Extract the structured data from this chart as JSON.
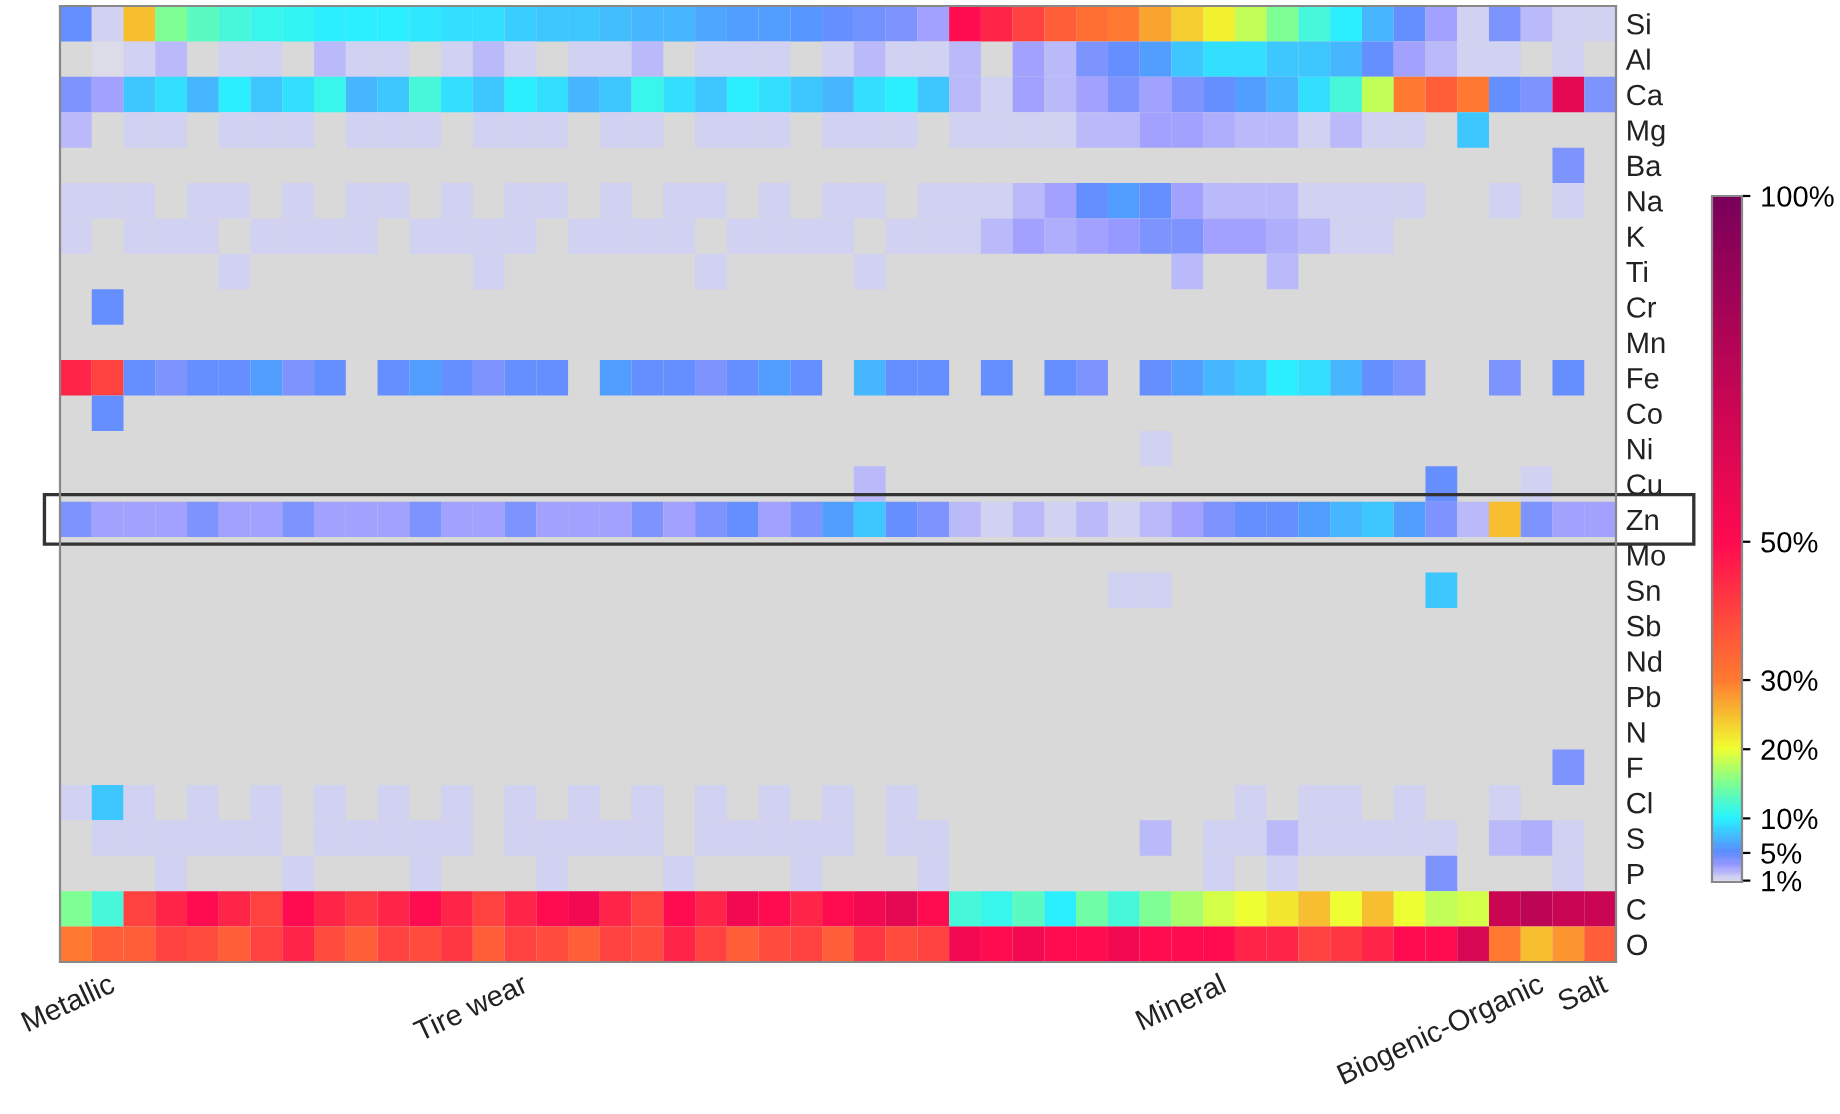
{
  "chart_data": {
    "type": "heatmap",
    "categories": [
      null,
      "Metallic",
      null,
      null,
      null,
      null,
      null,
      null,
      null,
      null,
      null,
      null,
      null,
      null,
      "Tire wear",
      null,
      null,
      null,
      null,
      null,
      null,
      null,
      null,
      null,
      null,
      null,
      null,
      null,
      null,
      null,
      null,
      null,
      null,
      null,
      null,
      null,
      "Mineral",
      null,
      null,
      null,
      null,
      null,
      null,
      null,
      null,
      null,
      "Biogenic-Organic",
      null,
      "Salt"
    ],
    "y_categories": [
      "Si",
      "Al",
      "Ca",
      "Mg",
      "Ba",
      "Na",
      "K",
      "Ti",
      "Cr",
      "Mn",
      "Fe",
      "Co",
      "Ni",
      "Cu",
      "Zn",
      "Mo",
      "Sn",
      "Sb",
      "Nd",
      "Pb",
      "N",
      "F",
      "Cl",
      "S",
      "P",
      "C",
      "O"
    ],
    "cells": [
      [
        5,
        1.5,
        25,
        15,
        13,
        12,
        11,
        10.5,
        10,
        10,
        10,
        9.5,
        9,
        9,
        8.5,
        8,
        8,
        7.5,
        7,
        7,
        6.5,
        6,
        6,
        5.5,
        5,
        4.5,
        4,
        3,
        50,
        45,
        40,
        35,
        32,
        30,
        27,
        24,
        21,
        18,
        15,
        12,
        10,
        7,
        5,
        3,
        1.5,
        4,
        2,
        1.5,
        1.2
      ],
      [
        null,
        1,
        1.5,
        2,
        null,
        1.5,
        1.5,
        null,
        2,
        1.5,
        1.5,
        null,
        1.5,
        2,
        1.5,
        null,
        1.5,
        1.5,
        2,
        null,
        1.5,
        1.5,
        1.5,
        null,
        1.5,
        2,
        1.5,
        1.5,
        2,
        null,
        3,
        2,
        4,
        5,
        6,
        8,
        9,
        9,
        8,
        8,
        7,
        5,
        3,
        2,
        1.5,
        1.5,
        null,
        1.5,
        null
      ],
      [
        4,
        3,
        8,
        9,
        7,
        10,
        8,
        9,
        11,
        7,
        8,
        12,
        9,
        8,
        10,
        9,
        7,
        8,
        11,
        9,
        8,
        10,
        9,
        8,
        7,
        9,
        10,
        8,
        2,
        1.5,
        3,
        2,
        3,
        4,
        3,
        4,
        5,
        6,
        7,
        9,
        12,
        18,
        30,
        35,
        30,
        5,
        4,
        60,
        4
      ],
      [
        2,
        null,
        1.2,
        1.2,
        null,
        1.2,
        1.2,
        1.2,
        null,
        1.2,
        1.2,
        1.2,
        null,
        1.2,
        1.2,
        1.2,
        null,
        1.2,
        1.2,
        null,
        1.2,
        1.2,
        1.2,
        null,
        1.2,
        1.2,
        1.2,
        null,
        1.2,
        1.2,
        1.5,
        1.5,
        2,
        2,
        3,
        3,
        2.5,
        2,
        2,
        1.5,
        2,
        1.5,
        1.5,
        null,
        8,
        null,
        null,
        null,
        null
      ],
      [
        null,
        null,
        null,
        null,
        null,
        null,
        null,
        null,
        null,
        null,
        null,
        null,
        null,
        null,
        null,
        null,
        null,
        null,
        null,
        null,
        null,
        null,
        null,
        null,
        null,
        null,
        null,
        null,
        null,
        null,
        null,
        null,
        null,
        null,
        null,
        null,
        null,
        null,
        null,
        null,
        null,
        null,
        null,
        null,
        null,
        null,
        null,
        4,
        null
      ],
      [
        1.5,
        1.5,
        1.5,
        null,
        1.5,
        1.5,
        null,
        1.5,
        null,
        1.5,
        1.5,
        null,
        1.5,
        null,
        1.5,
        1.5,
        null,
        1.5,
        null,
        1.5,
        1.5,
        null,
        1.5,
        null,
        1.5,
        1.5,
        null,
        1.5,
        1.2,
        1.5,
        2,
        3,
        5,
        6,
        5,
        3,
        2,
        2,
        2,
        1.5,
        1.5,
        1.5,
        1.2,
        null,
        null,
        1.2,
        null,
        1.5,
        null
      ],
      [
        1.2,
        null,
        1.5,
        1.5,
        1.5,
        null,
        1.5,
        1.5,
        1.5,
        1.5,
        null,
        1.5,
        1.5,
        1.5,
        1.5,
        null,
        1.5,
        1.5,
        1.5,
        1.5,
        null,
        1.5,
        1.5,
        1.5,
        1.5,
        null,
        1.5,
        1.5,
        1.5,
        2,
        3,
        2.5,
        3,
        3.5,
        4,
        4,
        3,
        3,
        2.5,
        2,
        1.5,
        1.2,
        null,
        null,
        null,
        null,
        null,
        null,
        null
      ],
      [
        null,
        null,
        null,
        null,
        null,
        1.2,
        null,
        null,
        null,
        null,
        null,
        null,
        null,
        1.2,
        null,
        null,
        null,
        null,
        null,
        null,
        1.2,
        null,
        null,
        null,
        null,
        1.2,
        null,
        null,
        null,
        null,
        null,
        null,
        null,
        null,
        null,
        2,
        null,
        null,
        2,
        null,
        null,
        null,
        null,
        null,
        null,
        null,
        null,
        null,
        null
      ],
      [
        null,
        5,
        null,
        null,
        null,
        null,
        null,
        null,
        null,
        null,
        null,
        null,
        null,
        null,
        null,
        null,
        null,
        null,
        null,
        null,
        null,
        null,
        null,
        null,
        null,
        null,
        null,
        null,
        null,
        null,
        null,
        null,
        null,
        null,
        null,
        null,
        null,
        null,
        null,
        null,
        null,
        null,
        null,
        null,
        null,
        null,
        null,
        null,
        null
      ],
      [
        null,
        null,
        null,
        null,
        null,
        null,
        null,
        null,
        null,
        null,
        null,
        null,
        null,
        null,
        null,
        null,
        null,
        null,
        null,
        null,
        null,
        null,
        null,
        null,
        null,
        null,
        null,
        null,
        null,
        null,
        null,
        null,
        null,
        null,
        null,
        null,
        null,
        null,
        null,
        null,
        null,
        null,
        null,
        null,
        null,
        null,
        null,
        null,
        null
      ],
      [
        45,
        40,
        5,
        4,
        5,
        5,
        6,
        4,
        5,
        null,
        5,
        6,
        5,
        4,
        5,
        5,
        null,
        6,
        5,
        5,
        4,
        5,
        6,
        5,
        null,
        7,
        5,
        5,
        null,
        5,
        null,
        5,
        4,
        null,
        5,
        6,
        7,
        8,
        10,
        9,
        7,
        5,
        4,
        null,
        null,
        4,
        null,
        5,
        null
      ],
      [
        null,
        5,
        null,
        null,
        null,
        null,
        null,
        null,
        null,
        null,
        null,
        null,
        null,
        null,
        null,
        null,
        null,
        null,
        null,
        null,
        null,
        null,
        null,
        null,
        null,
        null,
        null,
        null,
        null,
        null,
        null,
        null,
        null,
        null,
        null,
        null,
        null,
        null,
        null,
        null,
        null,
        null,
        null,
        null,
        null,
        null,
        null,
        null,
        null
      ],
      [
        null,
        null,
        null,
        null,
        null,
        null,
        null,
        null,
        null,
        null,
        null,
        null,
        null,
        null,
        null,
        null,
        null,
        null,
        null,
        null,
        null,
        null,
        null,
        null,
        null,
        null,
        null,
        null,
        null,
        null,
        null,
        null,
        null,
        null,
        1.5,
        null,
        null,
        null,
        null,
        null,
        null,
        null,
        null,
        null,
        null,
        null,
        null,
        null,
        null
      ],
      [
        null,
        null,
        null,
        null,
        null,
        null,
        null,
        null,
        null,
        null,
        null,
        null,
        null,
        null,
        null,
        null,
        null,
        null,
        null,
        null,
        null,
        null,
        null,
        null,
        null,
        2,
        null,
        null,
        null,
        null,
        null,
        null,
        null,
        null,
        null,
        null,
        null,
        null,
        null,
        null,
        null,
        null,
        null,
        5,
        null,
        null,
        1.5,
        null,
        null
      ],
      [
        4,
        3,
        3,
        3,
        4,
        3,
        3,
        4,
        3,
        3,
        3,
        4,
        3,
        3,
        4,
        3,
        3,
        3,
        4,
        3,
        4,
        5,
        3,
        4,
        6,
        8,
        5,
        4,
        2,
        1.5,
        2,
        1.5,
        2,
        1.5,
        2,
        3,
        4,
        5,
        5,
        6,
        7,
        8,
        6,
        4,
        2,
        25,
        4,
        3,
        3
      ],
      [
        null,
        null,
        null,
        null,
        null,
        null,
        null,
        null,
        null,
        null,
        null,
        null,
        null,
        null,
        null,
        null,
        null,
        null,
        null,
        null,
        null,
        null,
        null,
        null,
        null,
        null,
        null,
        null,
        null,
        null,
        null,
        null,
        null,
        null,
        null,
        null,
        null,
        null,
        null,
        null,
        null,
        null,
        null,
        null,
        null,
        null,
        null,
        null,
        null
      ],
      [
        null,
        null,
        null,
        null,
        null,
        null,
        null,
        null,
        null,
        null,
        null,
        null,
        null,
        null,
        null,
        null,
        null,
        null,
        null,
        null,
        null,
        null,
        null,
        null,
        null,
        null,
        null,
        null,
        null,
        null,
        null,
        null,
        null,
        1.5,
        1.5,
        null,
        null,
        null,
        null,
        null,
        null,
        null,
        null,
        8,
        null,
        null,
        null,
        null,
        null
      ],
      [
        null,
        null,
        null,
        null,
        null,
        null,
        null,
        null,
        null,
        null,
        null,
        null,
        null,
        null,
        null,
        null,
        null,
        null,
        null,
        null,
        null,
        null,
        null,
        null,
        null,
        null,
        null,
        null,
        null,
        null,
        null,
        null,
        null,
        null,
        null,
        null,
        null,
        null,
        null,
        null,
        null,
        null,
        null,
        null,
        null,
        null,
        null,
        null,
        null
      ],
      [
        null,
        null,
        null,
        null,
        null,
        null,
        null,
        null,
        null,
        null,
        null,
        null,
        null,
        null,
        null,
        null,
        null,
        null,
        null,
        null,
        null,
        null,
        null,
        null,
        null,
        null,
        null,
        null,
        null,
        null,
        null,
        null,
        null,
        null,
        null,
        null,
        null,
        null,
        null,
        null,
        null,
        null,
        null,
        null,
        null,
        null,
        null,
        null,
        null
      ],
      [
        null,
        null,
        null,
        null,
        null,
        null,
        null,
        null,
        null,
        null,
        null,
        null,
        null,
        null,
        null,
        null,
        null,
        null,
        null,
        null,
        null,
        null,
        null,
        null,
        null,
        null,
        null,
        null,
        null,
        null,
        null,
        null,
        null,
        null,
        null,
        null,
        null,
        null,
        null,
        null,
        null,
        null,
        null,
        null,
        null,
        null,
        null,
        null,
        null
      ],
      [
        null,
        null,
        null,
        null,
        null,
        null,
        null,
        null,
        null,
        null,
        null,
        null,
        null,
        null,
        null,
        null,
        null,
        null,
        null,
        null,
        null,
        null,
        null,
        null,
        null,
        null,
        null,
        null,
        null,
        null,
        null,
        null,
        null,
        null,
        null,
        null,
        null,
        null,
        null,
        null,
        null,
        null,
        null,
        null,
        null,
        null,
        null,
        null,
        null
      ],
      [
        null,
        null,
        null,
        null,
        null,
        null,
        null,
        null,
        null,
        null,
        null,
        null,
        null,
        null,
        null,
        null,
        null,
        null,
        null,
        null,
        null,
        null,
        null,
        null,
        null,
        null,
        null,
        null,
        null,
        null,
        null,
        null,
        null,
        null,
        null,
        null,
        null,
        null,
        null,
        null,
        null,
        null,
        null,
        null,
        null,
        null,
        null,
        4,
        null
      ],
      [
        1.2,
        8,
        1.2,
        null,
        1.2,
        null,
        1.2,
        null,
        1.2,
        null,
        1.2,
        null,
        1.2,
        null,
        1.2,
        null,
        1.2,
        null,
        1.2,
        null,
        1.2,
        null,
        1.2,
        null,
        1.2,
        null,
        1.2,
        null,
        null,
        null,
        null,
        null,
        null,
        null,
        null,
        null,
        null,
        1.2,
        null,
        1.2,
        1.2,
        null,
        1.2,
        null,
        null,
        1.2,
        null,
        null,
        null
      ],
      [
        null,
        1.2,
        1.5,
        1.5,
        1.2,
        1.5,
        1.5,
        null,
        1.5,
        1.5,
        1.2,
        1.5,
        1.5,
        null,
        1.5,
        1.5,
        1.2,
        1.5,
        1.5,
        null,
        1.5,
        1.5,
        1.2,
        1.5,
        1.5,
        null,
        1.5,
        1.5,
        null,
        null,
        null,
        null,
        null,
        null,
        2,
        null,
        1.2,
        1.5,
        2,
        1.5,
        1.2,
        1.5,
        1.5,
        1.2,
        null,
        2,
        2.5,
        1.5,
        null
      ],
      [
        null,
        null,
        null,
        1.2,
        null,
        null,
        null,
        1.2,
        null,
        null,
        null,
        1.2,
        null,
        null,
        null,
        1.2,
        null,
        null,
        null,
        1.2,
        null,
        null,
        null,
        1.2,
        null,
        null,
        null,
        1.2,
        null,
        null,
        null,
        null,
        null,
        null,
        null,
        null,
        1.2,
        null,
        1.2,
        null,
        null,
        null,
        null,
        4,
        null,
        null,
        null,
        1.5,
        null
      ],
      [
        15,
        12,
        40,
        45,
        50,
        45,
        40,
        50,
        45,
        42,
        45,
        50,
        45,
        40,
        45,
        50,
        55,
        45,
        40,
        50,
        45,
        55,
        50,
        45,
        50,
        55,
        60,
        50,
        12,
        11,
        13,
        10,
        14,
        12,
        15,
        17,
        19,
        20,
        22,
        25,
        20,
        25,
        20,
        18,
        19,
        70,
        75,
        70,
        70
      ],
      [
        30,
        35,
        35,
        40,
        38,
        35,
        40,
        45,
        38,
        35,
        40,
        38,
        42,
        35,
        40,
        38,
        35,
        40,
        38,
        45,
        40,
        35,
        38,
        40,
        35,
        42,
        38,
        40,
        55,
        50,
        55,
        50,
        50,
        55,
        50,
        50,
        50,
        45,
        45,
        40,
        42,
        45,
        50,
        50,
        65,
        30,
        25,
        28,
        35
      ]
    ],
    "clim": [
      0.8,
      100
    ],
    "cticks": [
      {
        "value": 1,
        "label": "1%"
      },
      {
        "value": 5,
        "label": "5%"
      },
      {
        "value": 10,
        "label": "10%"
      },
      {
        "value": 20,
        "label": "20%"
      },
      {
        "value": 30,
        "label": "30%"
      },
      {
        "value": 50,
        "label": "50%"
      },
      {
        "value": 100,
        "label": "100%"
      }
    ]
  }
}
